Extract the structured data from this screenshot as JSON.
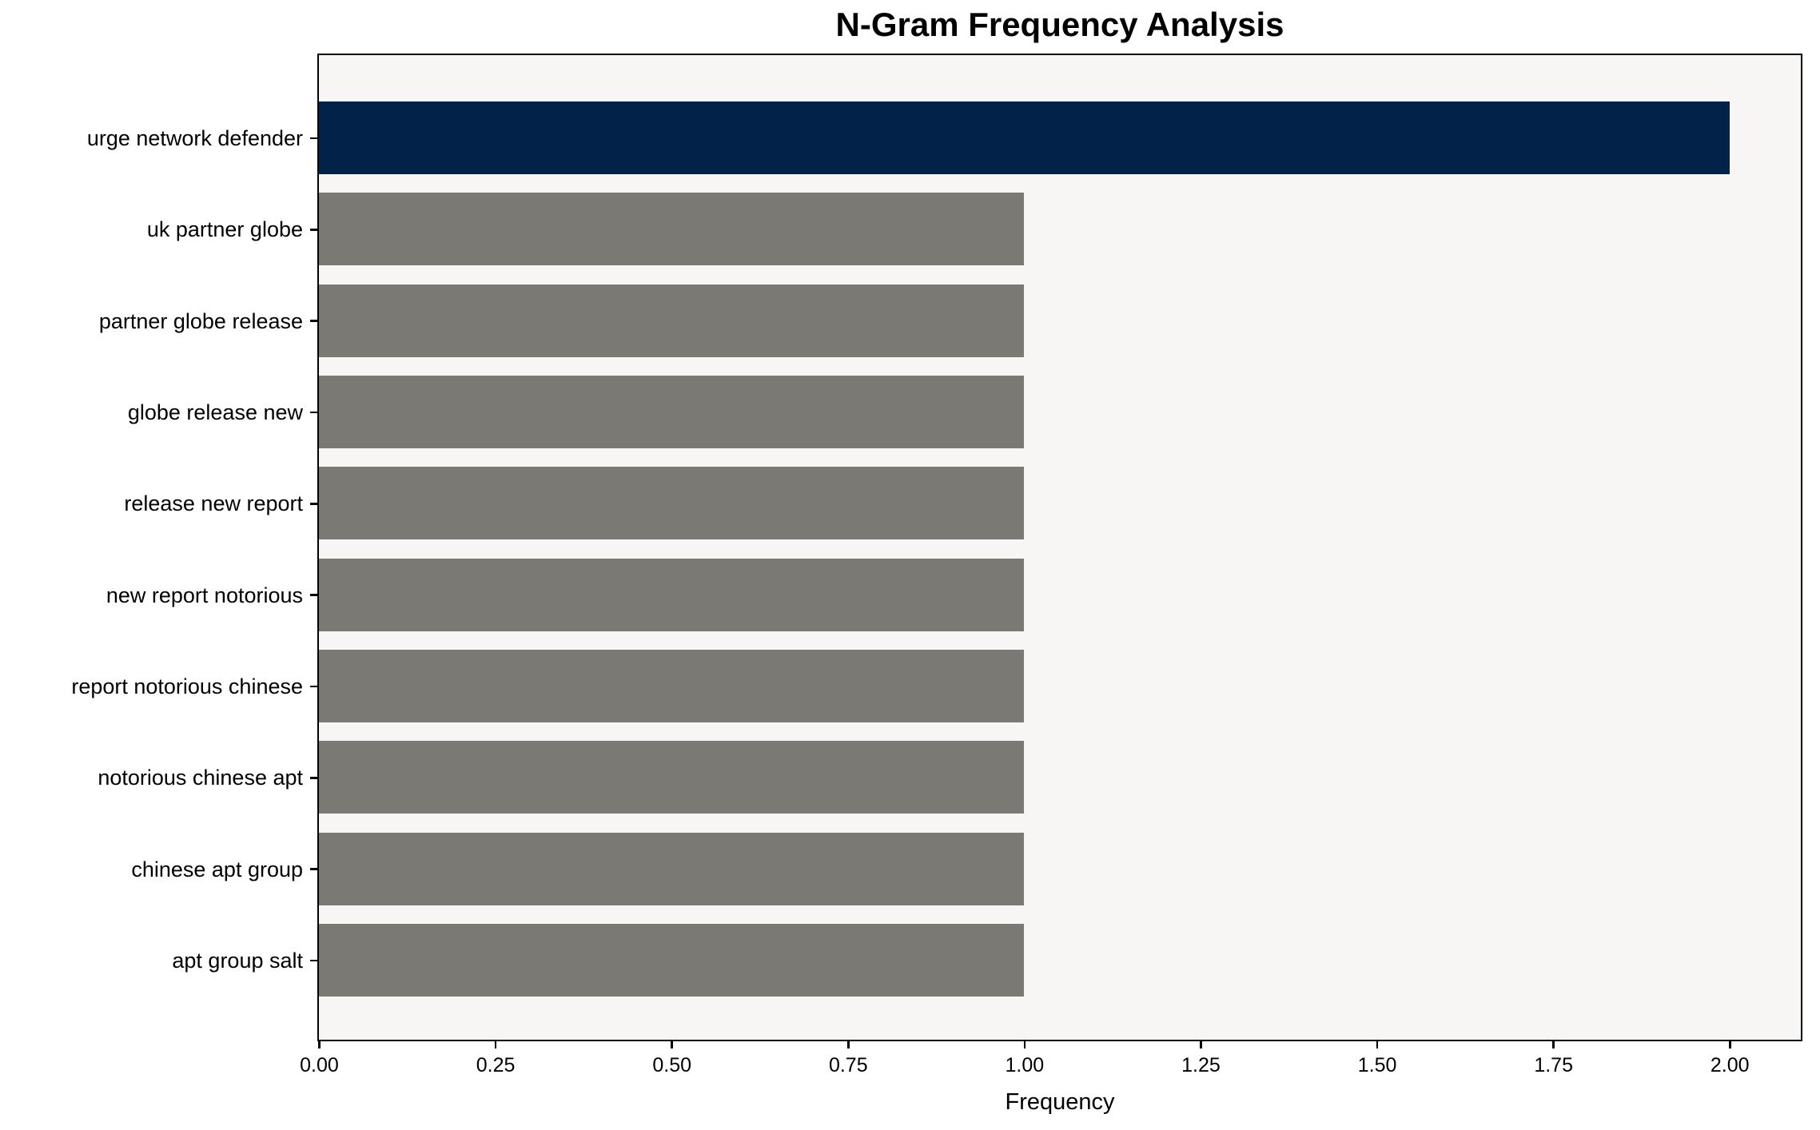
{
  "title": "N-Gram Frequency Analysis",
  "chart_data": {
    "type": "bar",
    "orientation": "horizontal",
    "title": "N-Gram Frequency Analysis",
    "categories": [
      "urge network defender",
      "uk partner globe",
      "partner globe release",
      "globe release new",
      "release new report",
      "new report notorious",
      "report notorious chinese",
      "notorious chinese apt",
      "chinese apt group",
      "apt group salt"
    ],
    "values": [
      2,
      1,
      1,
      1,
      1,
      1,
      1,
      1,
      1,
      1
    ],
    "highlight_index": 0,
    "xlabel": "Frequency",
    "ylabel": "",
    "xlim": [
      0,
      2.1
    ],
    "xticks": [
      0,
      0.25,
      0.5,
      0.75,
      1,
      1.25,
      1.5,
      1.75,
      2
    ],
    "xtick_labels": [
      "0.00",
      "0.25",
      "0.50",
      "0.75",
      "1.00",
      "1.25",
      "1.50",
      "1.75",
      "2.00"
    ],
    "grid": false,
    "legend_position": "none",
    "colors": {
      "highlight_bar": "#02224a",
      "default_bar": "#7b7974",
      "plot_background": "#f7f6f5",
      "figure_background": "#ffffff",
      "spine": "#000000",
      "text": "#000000"
    }
  }
}
